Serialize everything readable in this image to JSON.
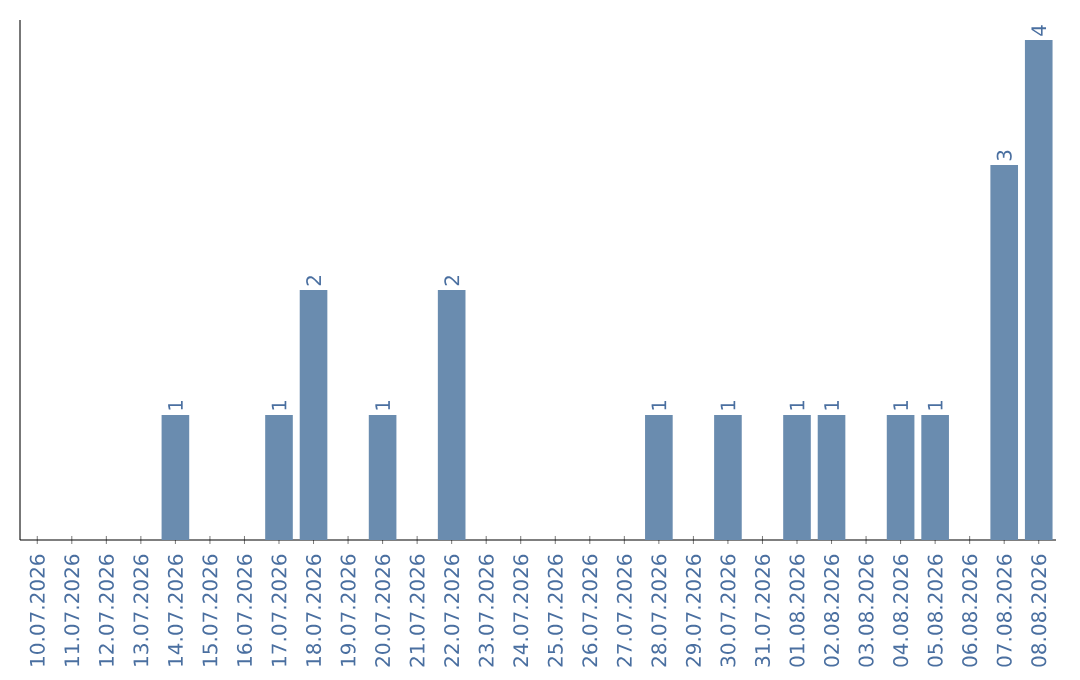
{
  "chart_data": {
    "type": "bar",
    "categories": [
      "10.07.2026",
      "11.07.2026",
      "12.07.2026",
      "13.07.2026",
      "14.07.2026",
      "15.07.2026",
      "16.07.2026",
      "17.07.2026",
      "18.07.2026",
      "19.07.2026",
      "20.07.2026",
      "21.07.2026",
      "22.07.2026",
      "23.07.2026",
      "24.07.2026",
      "25.07.2026",
      "26.07.2026",
      "27.07.2026",
      "28.07.2026",
      "29.07.2026",
      "30.07.2026",
      "31.07.2026",
      "01.08.2026",
      "02.08.2026",
      "03.08.2026",
      "04.08.2026",
      "05.08.2026",
      "06.08.2026",
      "07.08.2026",
      "08.08.2026"
    ],
    "values": [
      0,
      0,
      0,
      0,
      1,
      0,
      0,
      1,
      2,
      0,
      1,
      0,
      2,
      0,
      0,
      0,
      0,
      0,
      1,
      0,
      1,
      0,
      1,
      1,
      0,
      1,
      1,
      0,
      3,
      4
    ],
    "value_labels": [
      null,
      null,
      null,
      null,
      "1",
      null,
      null,
      "1",
      "2",
      null,
      "1",
      null,
      "2",
      null,
      null,
      null,
      null,
      null,
      "1",
      null,
      "1",
      null,
      "1",
      "1",
      null,
      "1",
      "1",
      null,
      "3",
      "4"
    ],
    "color": "#6a8caf",
    "tick_labels": "x",
    "grid": false
  }
}
